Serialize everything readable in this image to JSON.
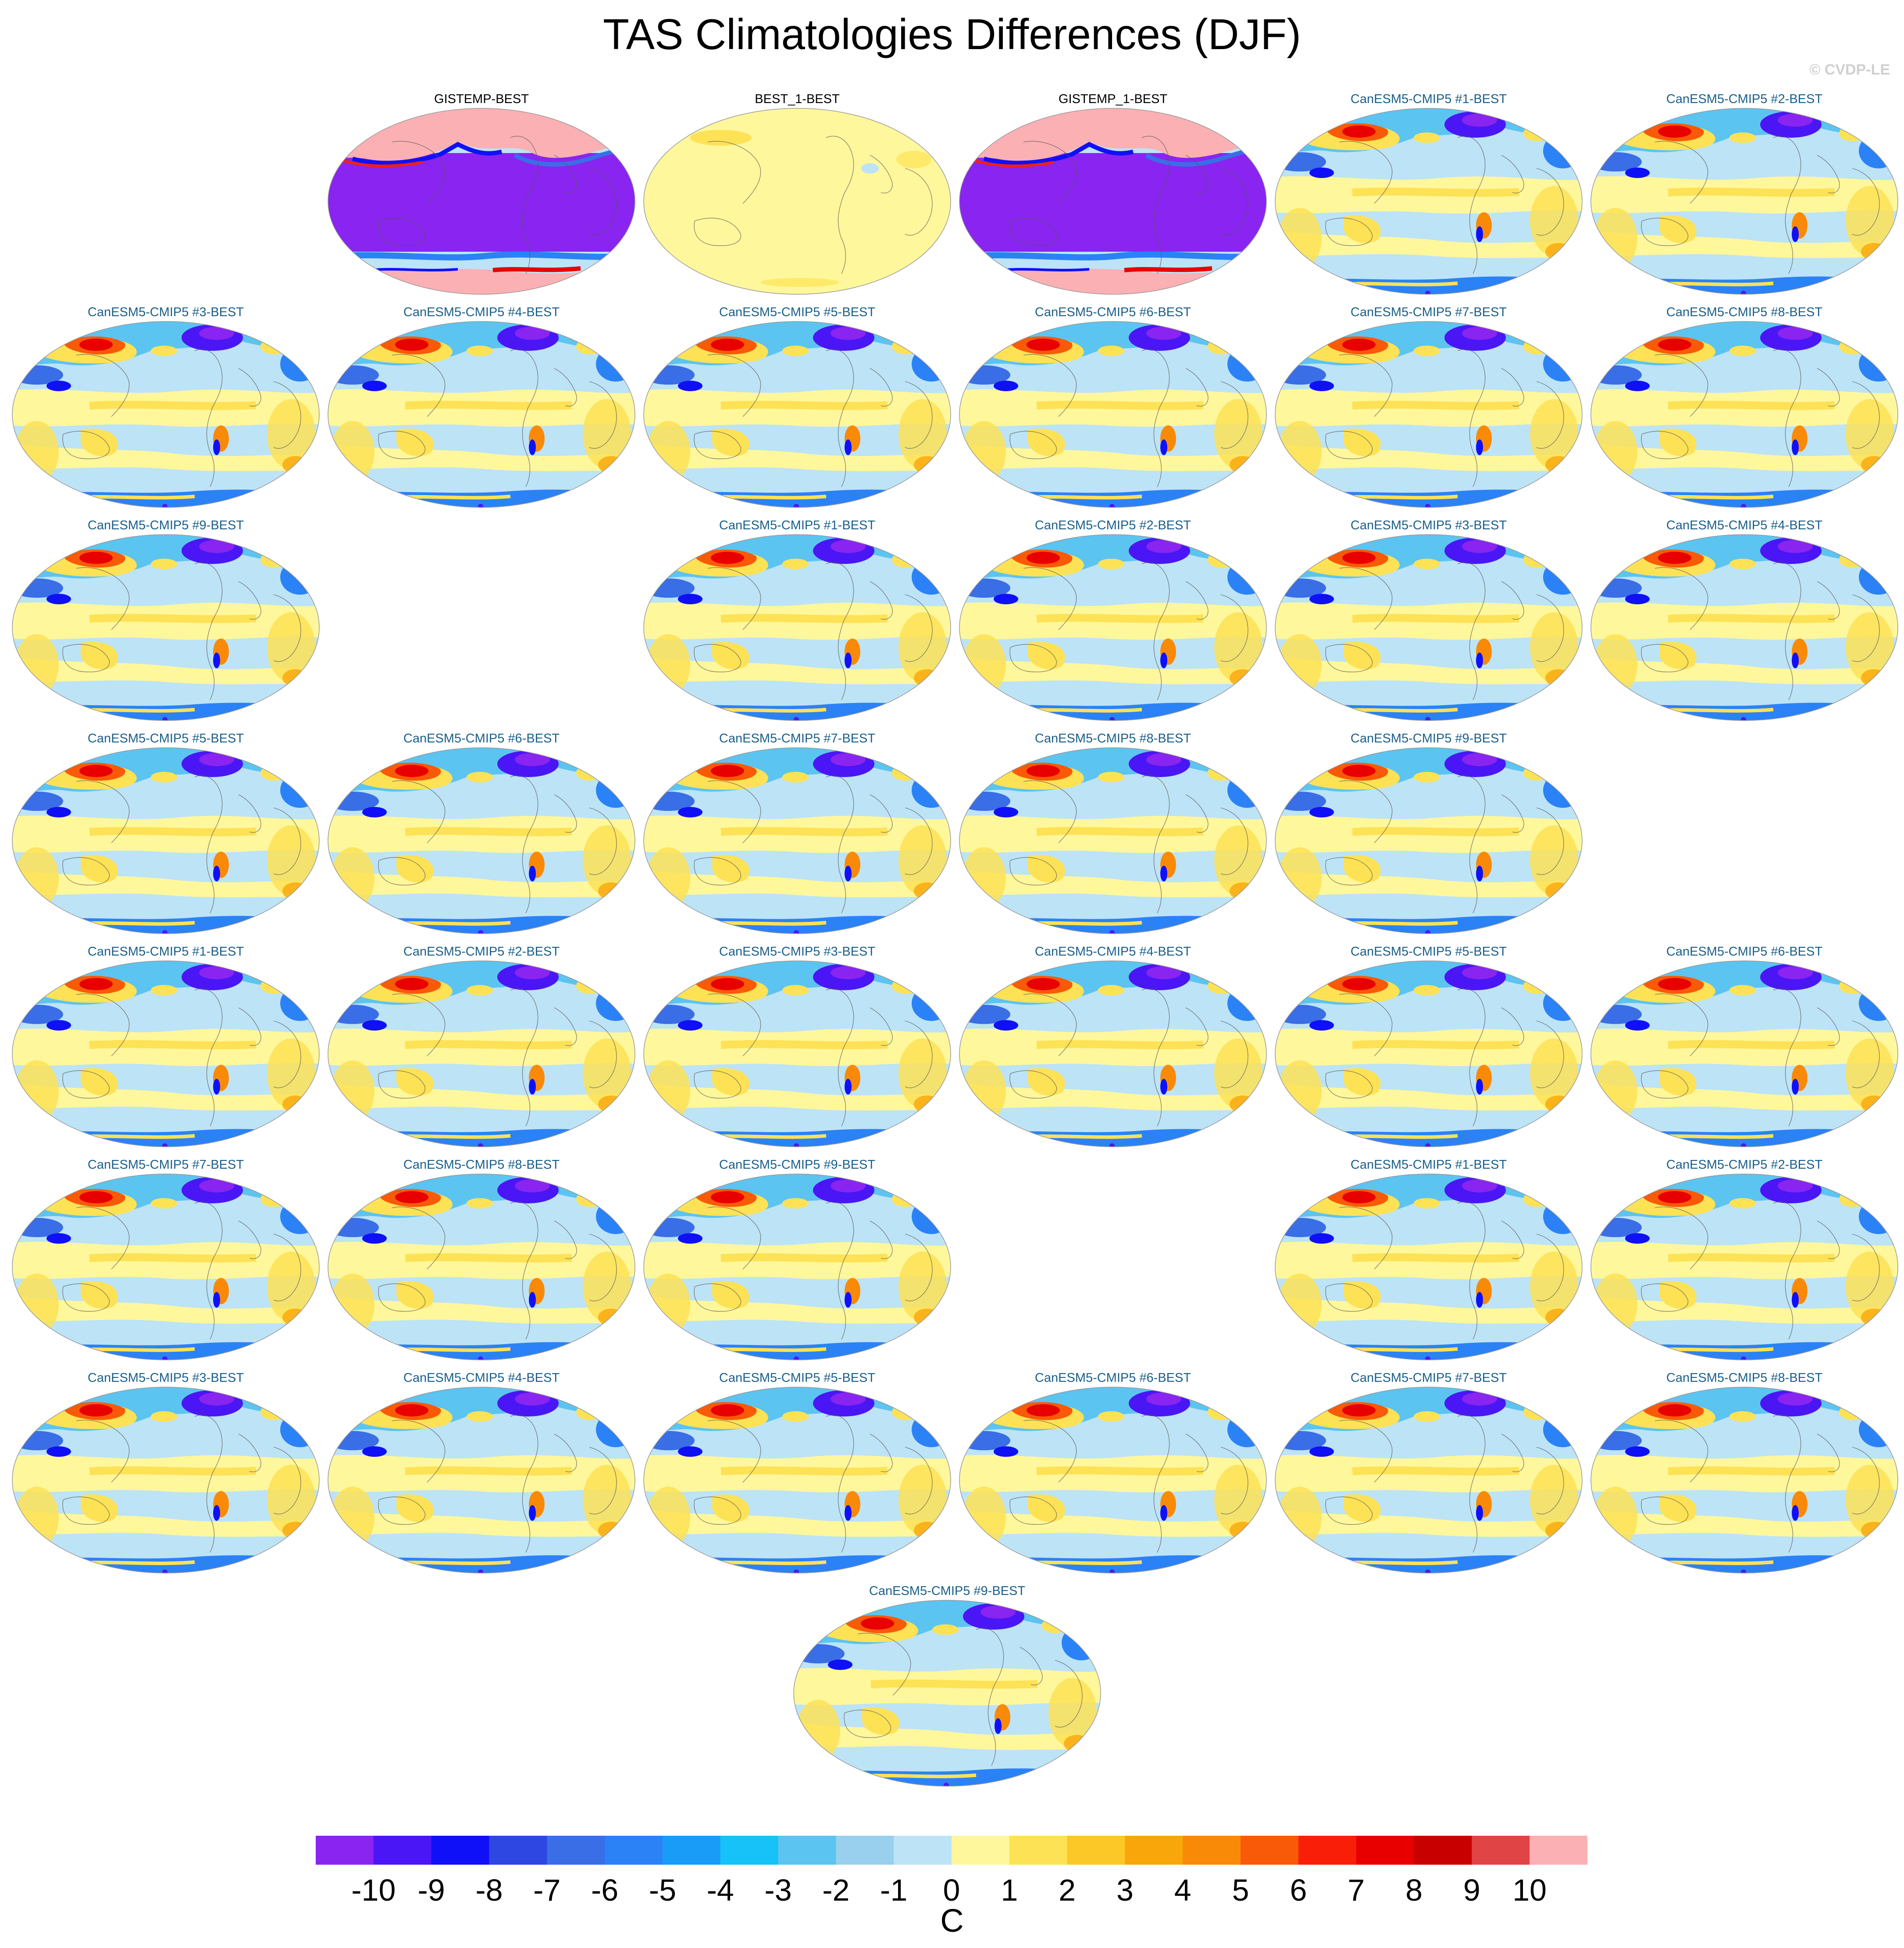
{
  "title": "TAS Climatologies Differences (DJF)",
  "copyright": "© CVDP-LE",
  "panels": [
    {
      "label": "GISTEMP-BEST",
      "style": "obs_cold"
    },
    {
      "label": "BEST_1-BEST",
      "style": "obs_flat"
    },
    {
      "label": "GISTEMP_1-BEST",
      "style": "obs_cold"
    },
    {
      "label": "CanESM5-CMIP5 #1-BEST",
      "style": "model"
    },
    {
      "label": "CanESM5-CMIP5 #2-BEST",
      "style": "model"
    },
    {
      "label": "CanESM5-CMIP5 #3-BEST",
      "style": "model"
    },
    {
      "label": "CanESM5-CMIP5 #4-BEST",
      "style": "model"
    },
    {
      "label": "CanESM5-CMIP5 #5-BEST",
      "style": "model"
    },
    {
      "label": "CanESM5-CMIP5 #6-BEST",
      "style": "model"
    },
    {
      "label": "CanESM5-CMIP5 #7-BEST",
      "style": "model"
    },
    {
      "label": "CanESM5-CMIP5 #8-BEST",
      "style": "model"
    },
    {
      "label": "CanESM5-CMIP5 #9-BEST",
      "style": "model"
    },
    {
      "label": "CanESM5-CMIP5 #1-BEST",
      "style": "model"
    },
    {
      "label": "CanESM5-CMIP5 #2-BEST",
      "style": "model"
    },
    {
      "label": "CanESM5-CMIP5 #3-BEST",
      "style": "model"
    },
    {
      "label": "CanESM5-CMIP5 #4-BEST",
      "style": "model"
    },
    {
      "label": "CanESM5-CMIP5 #5-BEST",
      "style": "model"
    },
    {
      "label": "CanESM5-CMIP5 #6-BEST",
      "style": "model"
    },
    {
      "label": "CanESM5-CMIP5 #7-BEST",
      "style": "model"
    },
    {
      "label": "CanESM5-CMIP5 #8-BEST",
      "style": "model"
    },
    {
      "label": "CanESM5-CMIP5 #9-BEST",
      "style": "model"
    },
    {
      "label": "CanESM5-CMIP5 #1-BEST",
      "style": "model"
    },
    {
      "label": "CanESM5-CMIP5 #2-BEST",
      "style": "model"
    },
    {
      "label": "CanESM5-CMIP5 #3-BEST",
      "style": "model"
    },
    {
      "label": "CanESM5-CMIP5 #4-BEST",
      "style": "model"
    },
    {
      "label": "CanESM5-CMIP5 #5-BEST",
      "style": "model"
    },
    {
      "label": "CanESM5-CMIP5 #6-BEST",
      "style": "model"
    },
    {
      "label": "CanESM5-CMIP5 #7-BEST",
      "style": "model"
    },
    {
      "label": "CanESM5-CMIP5 #8-BEST",
      "style": "model"
    },
    {
      "label": "CanESM5-CMIP5 #9-BEST",
      "style": "model"
    },
    {
      "label": "CanESM5-CMIP5 #1-BEST",
      "style": "model"
    },
    {
      "label": "CanESM5-CMIP5 #2-BEST",
      "style": "model"
    },
    {
      "label": "CanESM5-CMIP5 #3-BEST",
      "style": "model"
    },
    {
      "label": "CanESM5-CMIP5 #4-BEST",
      "style": "model"
    },
    {
      "label": "CanESM5-CMIP5 #5-BEST",
      "style": "model"
    },
    {
      "label": "CanESM5-CMIP5 #6-BEST",
      "style": "model"
    },
    {
      "label": "CanESM5-CMIP5 #7-BEST",
      "style": "model"
    },
    {
      "label": "CanESM5-CMIP5 #8-BEST",
      "style": "model"
    },
    {
      "label": "CanESM5-CMIP5 #9-BEST",
      "style": "model"
    }
  ],
  "colorbar": {
    "units": "C",
    "labels": [
      "-10",
      "-9",
      "-8",
      "-7",
      "-6",
      "-5",
      "-4",
      "-3",
      "-2",
      "-1",
      "0",
      "1",
      "2",
      "3",
      "4",
      "5",
      "6",
      "7",
      "8",
      "9",
      "10"
    ],
    "colors": [
      "#8a24f0",
      "#4a16f6",
      "#1010f8",
      "#2e46e2",
      "#3a6ee6",
      "#2a82f6",
      "#189cf8",
      "#16c2f8",
      "#5cc4f0",
      "#98d0ee",
      "#bde3f6",
      "#fff79c",
      "#fde256",
      "#fbc827",
      "#f9a60a",
      "#f98a08",
      "#f95a08",
      "#f91e08",
      "#e80000",
      "#c80000",
      "#e04444",
      "#fbb0b4"
    ]
  }
}
